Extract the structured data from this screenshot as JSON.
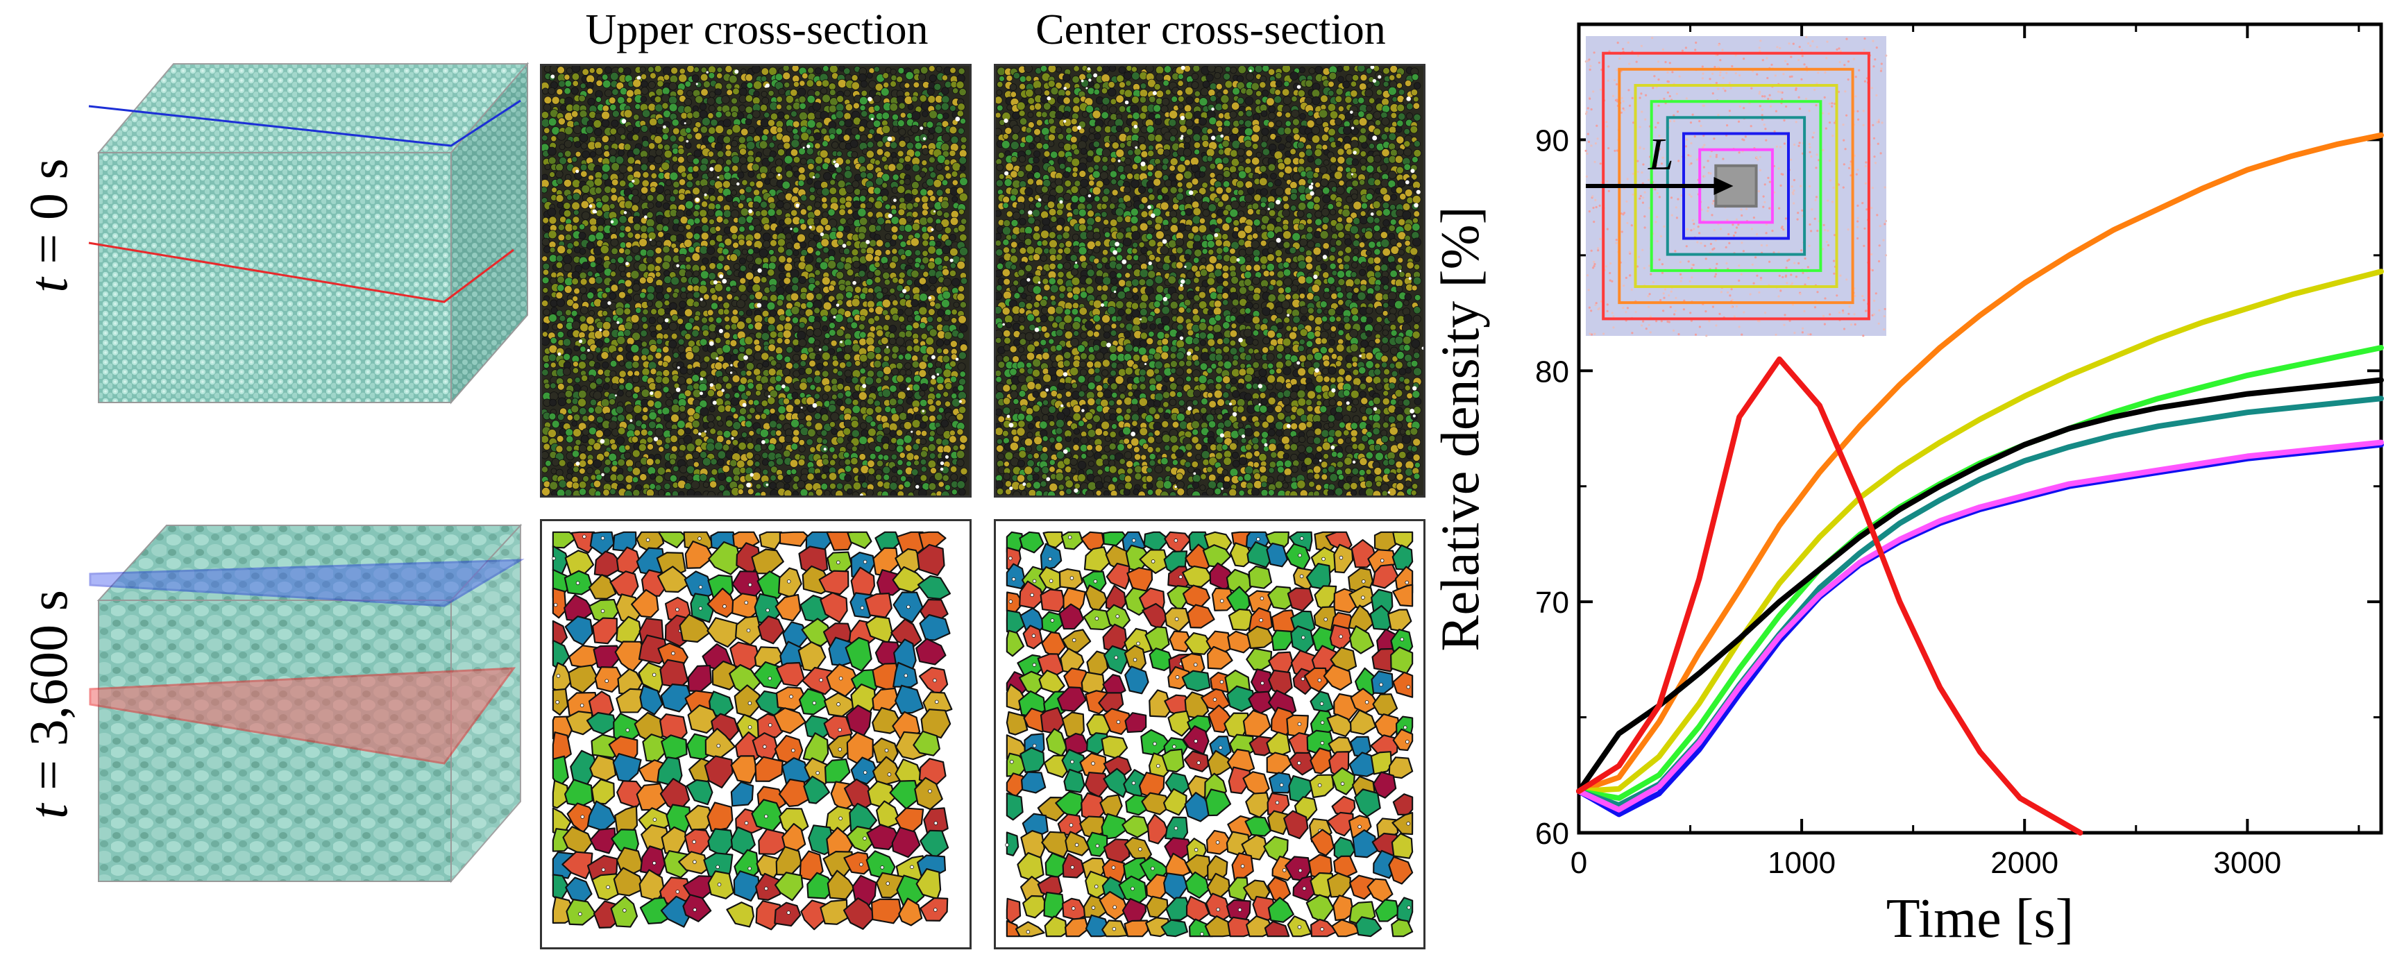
{
  "figure": {
    "row_labels": [
      {
        "var": "t",
        "rest": " = 0 s"
      },
      {
        "var": "t",
        "rest": " = 3,600 s"
      }
    ],
    "column_headers": [
      "Upper cross-section",
      "Center cross-section"
    ],
    "colors": {
      "particles": "#8ecdc0",
      "upper_plane": "#1c2fd6",
      "center_plane": "#e8292b",
      "grain_palette": [
        "#e0523a",
        "#f0892a",
        "#c9c92c",
        "#8fce2a",
        "#2fbf35",
        "#1aa065",
        "#c8a020",
        "#b83030",
        "#1b7fb0",
        "#a01040",
        "#d8b030",
        "#e86a20"
      ],
      "fine_palette": [
        "#2c2c22",
        "#5a7a20",
        "#a89a20",
        "#3a9a3a",
        "#1f1f1f",
        "#7a8a1a",
        "#c4a62a",
        "#2f6a2f"
      ]
    }
  },
  "inset": {
    "label": "L",
    "square_colors": [
      "#f39a9a",
      "#ff3a3a",
      "#ff8a2a",
      "#d8d82a",
      "#3aff3a",
      "#1a9090",
      "#1a1aee",
      "#ff4dff",
      "#777777"
    ]
  },
  "chart_data": {
    "type": "line",
    "xlabel": "Time [s]",
    "ylabel": "Relative density [%]",
    "xlim": [
      0,
      3600
    ],
    "ylim": [
      60,
      95
    ],
    "xticks": [
      0,
      1000,
      2000,
      3000
    ],
    "yticks": [
      60,
      70,
      80,
      90
    ],
    "series": [
      {
        "name": "red",
        "color": "#f01818",
        "x": [
          0,
          180,
          360,
          540,
          720,
          900,
          1080,
          1260,
          1440,
          1620,
          1800,
          1980,
          2160,
          2250
        ],
        "y": [
          61.8,
          62.9,
          65.5,
          71.0,
          78.0,
          80.5,
          78.5,
          74.5,
          70.0,
          66.3,
          63.5,
          61.5,
          60.5,
          60.0
        ]
      },
      {
        "name": "orange",
        "color": "#ff7f0e",
        "x": [
          0,
          180,
          360,
          540,
          720,
          900,
          1080,
          1260,
          1440,
          1620,
          1800,
          2000,
          2200,
          2400,
          2600,
          2800,
          3000,
          3200,
          3400,
          3600
        ],
        "y": [
          61.8,
          62.4,
          64.8,
          67.8,
          70.5,
          73.3,
          75.6,
          77.6,
          79.4,
          81.0,
          82.4,
          83.8,
          85.0,
          86.1,
          87.0,
          87.9,
          88.7,
          89.3,
          89.8,
          90.2
        ]
      },
      {
        "name": "yellow",
        "color": "#d4d400",
        "x": [
          0,
          180,
          360,
          540,
          720,
          900,
          1080,
          1260,
          1440,
          1620,
          1800,
          2000,
          2200,
          2400,
          2600,
          2800,
          3000,
          3200,
          3400,
          3600
        ],
        "y": [
          61.8,
          61.9,
          63.3,
          65.6,
          68.3,
          70.8,
          72.8,
          74.5,
          75.8,
          76.9,
          77.9,
          78.9,
          79.8,
          80.6,
          81.4,
          82.1,
          82.7,
          83.3,
          83.8,
          84.3
        ]
      },
      {
        "name": "green",
        "color": "#2ff52f",
        "x": [
          0,
          180,
          360,
          540,
          720,
          900,
          1080,
          1260,
          1440,
          1620,
          1800,
          2000,
          2200,
          2400,
          2600,
          2800,
          3000,
          3200,
          3400,
          3600
        ],
        "y": [
          61.8,
          61.5,
          62.5,
          64.6,
          67.1,
          69.4,
          71.4,
          72.9,
          74.1,
          75.1,
          76.0,
          76.8,
          77.5,
          78.2,
          78.8,
          79.3,
          79.8,
          80.2,
          80.6,
          81.0
        ]
      },
      {
        "name": "black",
        "color": "#000000",
        "x": [
          0,
          180,
          360,
          540,
          720,
          900,
          1080,
          1260,
          1440,
          1620,
          1800,
          2000,
          2200,
          2400,
          2600,
          2800,
          3000,
          3200,
          3400,
          3600
        ],
        "y": [
          61.8,
          64.3,
          65.5,
          66.9,
          68.4,
          70.0,
          71.4,
          72.8,
          74.0,
          75.0,
          75.9,
          76.8,
          77.5,
          78.0,
          78.4,
          78.7,
          79.0,
          79.2,
          79.4,
          79.6
        ]
      },
      {
        "name": "teal",
        "color": "#158a85",
        "x": [
          0,
          180,
          360,
          540,
          720,
          900,
          1080,
          1260,
          1440,
          1620,
          1800,
          2000,
          2200,
          2400,
          2600,
          2800,
          3000,
          3200,
          3400,
          3600
        ],
        "y": [
          61.8,
          61.2,
          62.1,
          64.0,
          66.4,
          68.6,
          70.6,
          72.1,
          73.4,
          74.4,
          75.3,
          76.1,
          76.7,
          77.2,
          77.6,
          77.9,
          78.2,
          78.4,
          78.6,
          78.8
        ]
      },
      {
        "name": "blue",
        "color": "#1010f0",
        "x": [
          0,
          180,
          360,
          540,
          720,
          900,
          1080,
          1260,
          1440,
          1620,
          1800,
          2000,
          2200,
          2400,
          2600,
          2800,
          3000,
          3200,
          3400,
          3600
        ],
        "y": [
          61.8,
          60.8,
          61.7,
          63.6,
          66.0,
          68.3,
          70.2,
          71.6,
          72.6,
          73.4,
          74.0,
          74.5,
          75.0,
          75.3,
          75.6,
          75.9,
          76.2,
          76.4,
          76.6,
          76.8
        ]
      },
      {
        "name": "magenta",
        "color": "#ff55ff",
        "x": [
          0,
          180,
          360,
          540,
          720,
          900,
          1080,
          1260,
          1440,
          1620,
          1800,
          2000,
          2200,
          2400,
          2600,
          2800,
          3000,
          3200,
          3400,
          3600
        ],
        "y": [
          61.8,
          61.0,
          62.0,
          63.9,
          66.3,
          68.5,
          70.3,
          71.7,
          72.7,
          73.5,
          74.1,
          74.6,
          75.1,
          75.4,
          75.7,
          76.0,
          76.3,
          76.5,
          76.7,
          76.9
        ]
      }
    ]
  }
}
